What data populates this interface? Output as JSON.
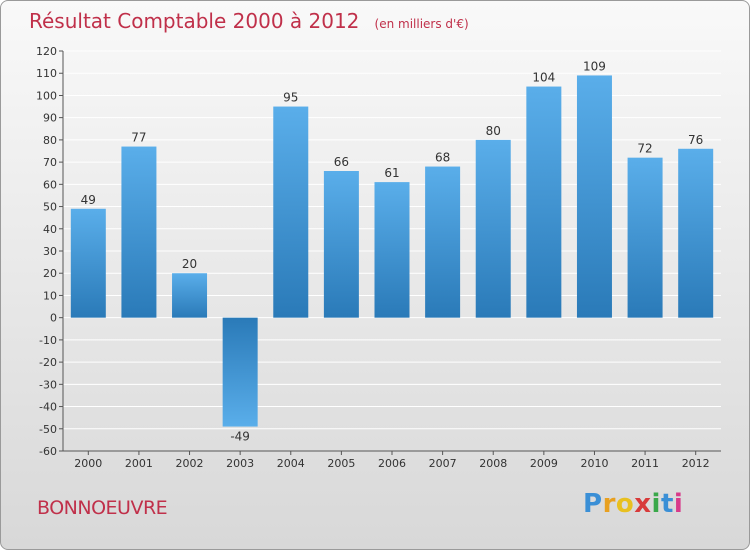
{
  "header": {
    "title": "Résultat Comptable 2000 à 2012",
    "unit": "(en milliers d'€)"
  },
  "footer": {
    "town": "BONNOEUVRE",
    "logo_letters": [
      "P",
      "r",
      "o",
      "x",
      "i",
      "t",
      "i"
    ],
    "logo_colors": [
      "#3a8fd6",
      "#e8a020",
      "#e8c020",
      "#d83a3a",
      "#3aa84a",
      "#3a8fd6",
      "#d83a8a"
    ]
  },
  "colors": {
    "title": "#c0304a",
    "bar_top": "#5aaeea",
    "bar_bottom": "#2a7ab8",
    "grid": "#ffffff"
  },
  "chart_data": {
    "type": "bar",
    "categories": [
      "2000",
      "2001",
      "2002",
      "2003",
      "2004",
      "2005",
      "2006",
      "2007",
      "2008",
      "2009",
      "2010",
      "2011",
      "2012"
    ],
    "values": [
      49,
      77,
      20,
      -49,
      95,
      66,
      61,
      68,
      80,
      104,
      109,
      72,
      76
    ],
    "ylim": [
      -60,
      120
    ],
    "yticks": [
      120,
      110,
      100,
      90,
      80,
      70,
      60,
      50,
      40,
      30,
      20,
      10,
      0,
      -10,
      -20,
      -30,
      -40,
      -50,
      -60
    ],
    "grid": true
  }
}
